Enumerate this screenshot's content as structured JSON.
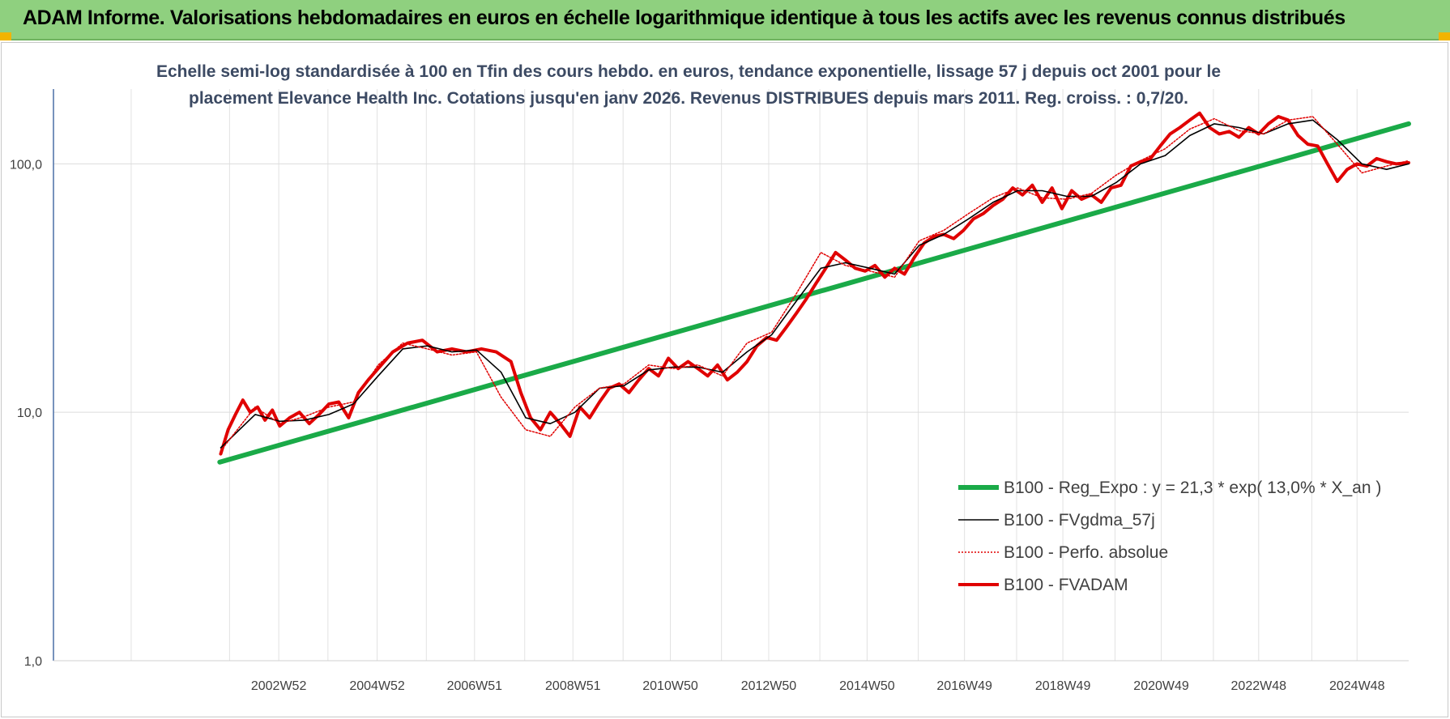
{
  "header": {
    "title": "ADAM Informe. Valorisations hebdomadaires en euros en échelle logarithmique identique à tous les actifs avec les revenus connus distribués"
  },
  "chart_data": {
    "type": "line",
    "title_lines": [
      "Echelle semi-log standardisée à 100 en Tfin des cours hebdo. en euros, tendance exponentielle, lissage 57 j depuis oct 2001 pour le",
      "placement Elevance Health Inc. Cotations jusqu'en janv 2026. Revenus DISTRIBUES depuis mars 2011. Reg. croiss. : 0,7/20."
    ],
    "y_scale": "log",
    "ylim": [
      1,
      200
    ],
    "y_ticks": [
      {
        "value": 1,
        "label": "1,0"
      },
      {
        "value": 10,
        "label": "10,0"
      },
      {
        "value": 100,
        "label": "100,0"
      }
    ],
    "xlim": [
      1998.4,
      2025.95
    ],
    "x_ticks": [
      {
        "value": 2002.98,
        "label": "2002W52"
      },
      {
        "value": 2004.98,
        "label": "2004W52"
      },
      {
        "value": 2006.96,
        "label": "2006W51"
      },
      {
        "value": 2008.96,
        "label": "2008W51"
      },
      {
        "value": 2010.94,
        "label": "2010W50"
      },
      {
        "value": 2012.94,
        "label": "2012W50"
      },
      {
        "value": 2014.94,
        "label": "2014W50"
      },
      {
        "value": 2016.92,
        "label": "2016W49"
      },
      {
        "value": 2018.92,
        "label": "2018W49"
      },
      {
        "value": 2020.92,
        "label": "2020W49"
      },
      {
        "value": 2022.9,
        "label": "2022W48"
      },
      {
        "value": 2024.9,
        "label": "2024W48"
      }
    ],
    "grid": true,
    "legend_position": "bottom-right",
    "series": [
      {
        "name": "B100 - Reg_Expo : y = 21,3 * exp( 13,0% *  X_an )",
        "color": "#1aaa48",
        "style": "thick",
        "x": [
          2001.78,
          2025.95
        ],
        "y": [
          6.3,
          145
        ]
      },
      {
        "name": "B100 - FVgdma_57j",
        "color": "#000000",
        "style": "thin",
        "x": [
          2001.8,
          2002.5,
          2003.0,
          2003.5,
          2004.0,
          2004.5,
          2005.0,
          2005.5,
          2006.0,
          2006.5,
          2007.0,
          2007.5,
          2008.0,
          2008.5,
          2009.0,
          2009.5,
          2010.0,
          2010.5,
          2011.0,
          2011.5,
          2012.0,
          2012.5,
          2013.0,
          2013.5,
          2014.0,
          2014.5,
          2015.0,
          2015.5,
          2016.0,
          2016.5,
          2017.0,
          2017.5,
          2018.0,
          2018.5,
          2019.0,
          2019.5,
          2020.0,
          2020.5,
          2021.0,
          2021.5,
          2022.0,
          2022.5,
          2023.0,
          2023.5,
          2024.0,
          2024.5,
          2025.0,
          2025.5,
          2025.95
        ],
        "y": [
          7.2,
          9.8,
          9.2,
          9.3,
          9.8,
          10.8,
          14,
          18,
          18.5,
          17.5,
          17.8,
          14.5,
          9.5,
          9,
          10,
          12.5,
          12.8,
          14.8,
          15.2,
          15.2,
          14.5,
          17.5,
          20.5,
          28,
          38,
          40,
          38,
          36,
          47,
          52,
          60,
          70,
          78,
          78,
          74,
          74,
          84,
          100,
          108,
          130,
          145,
          140,
          132,
          145,
          150,
          125,
          100,
          95,
          100
        ]
      },
      {
        "name": "B100 - Perfo. absolue",
        "color": "#e00000",
        "style": "dotted",
        "x": [
          2001.8,
          2002.5,
          2003.0,
          2003.5,
          2004.0,
          2004.5,
          2005.0,
          2005.5,
          2006.0,
          2006.5,
          2007.0,
          2007.5,
          2008.0,
          2008.5,
          2009.0,
          2009.5,
          2010.0,
          2010.5,
          2011.0,
          2011.5,
          2012.0,
          2012.5,
          2013.0,
          2013.5,
          2014.0,
          2014.5,
          2015.0,
          2015.5,
          2016.0,
          2016.5,
          2017.0,
          2017.5,
          2018.0,
          2018.5,
          2019.0,
          2019.5,
          2020.0,
          2020.5,
          2021.0,
          2021.5,
          2022.0,
          2022.5,
          2023.0,
          2023.5,
          2024.0,
          2024.5,
          2025.0,
          2025.5,
          2025.95
        ],
        "y": [
          7.0,
          10.5,
          9.0,
          9.6,
          10.5,
          11.0,
          15.5,
          19.0,
          18.0,
          17.0,
          17.5,
          11.5,
          8.5,
          8.0,
          10.5,
          12.5,
          13.0,
          15.5,
          15.0,
          15.5,
          14.0,
          19.0,
          21.0,
          30.0,
          44.0,
          39.0,
          37.0,
          35.0,
          49.0,
          54.0,
          63.0,
          73.0,
          80.0,
          73.0,
          72.0,
          76.0,
          90.0,
          103.0,
          115.0,
          138.0,
          152.0,
          136.0,
          132.0,
          150.0,
          155.0,
          120.0,
          92.0,
          98.0,
          103.0
        ]
      },
      {
        "name": "B100 - FVADAM",
        "color": "#e00000",
        "style": "thick",
        "x": [
          2001.8,
          2001.95,
          2002.1,
          2002.25,
          2002.4,
          2002.55,
          2002.7,
          2002.85,
          2003.0,
          2003.2,
          2003.4,
          2003.6,
          2003.8,
          2004.0,
          2004.2,
          2004.4,
          2004.6,
          2004.8,
          2005.0,
          2005.3,
          2005.6,
          2005.9,
          2006.2,
          2006.5,
          2006.8,
          2007.1,
          2007.4,
          2007.7,
          2007.9,
          2008.1,
          2008.3,
          2008.5,
          2008.7,
          2008.9,
          2009.1,
          2009.3,
          2009.5,
          2009.7,
          2009.9,
          2010.1,
          2010.3,
          2010.5,
          2010.7,
          2010.9,
          2011.1,
          2011.3,
          2011.5,
          2011.7,
          2011.9,
          2012.1,
          2012.3,
          2012.5,
          2012.7,
          2012.9,
          2013.1,
          2013.3,
          2013.5,
          2013.7,
          2013.9,
          2014.1,
          2014.3,
          2014.5,
          2014.7,
          2014.9,
          2015.1,
          2015.3,
          2015.5,
          2015.7,
          2015.9,
          2016.1,
          2016.3,
          2016.5,
          2016.7,
          2016.9,
          2017.1,
          2017.3,
          2017.5,
          2017.7,
          2017.9,
          2018.1,
          2018.3,
          2018.5,
          2018.7,
          2018.9,
          2019.1,
          2019.3,
          2019.5,
          2019.7,
          2019.9,
          2020.1,
          2020.3,
          2020.5,
          2020.7,
          2020.9,
          2021.1,
          2021.3,
          2021.5,
          2021.7,
          2021.9,
          2022.1,
          2022.3,
          2022.5,
          2022.7,
          2022.9,
          2023.1,
          2023.3,
          2023.5,
          2023.7,
          2023.9,
          2024.1,
          2024.3,
          2024.5,
          2024.7,
          2024.9,
          2025.1,
          2025.3,
          2025.5,
          2025.7,
          2025.95
        ],
        "y": [
          6.8,
          8.5,
          9.8,
          11.2,
          10.0,
          10.5,
          9.3,
          10.2,
          8.8,
          9.5,
          10.0,
          9.0,
          9.8,
          10.8,
          11.0,
          9.5,
          12.0,
          13.5,
          15.0,
          17.5,
          19.0,
          19.5,
          17.5,
          18.0,
          17.5,
          18.0,
          17.5,
          16.0,
          12.0,
          9.5,
          8.5,
          10.0,
          9.0,
          8.0,
          10.5,
          9.5,
          11.0,
          12.5,
          13.0,
          12.0,
          13.5,
          15.0,
          14.0,
          16.5,
          15.0,
          16.0,
          15.0,
          14.0,
          15.5,
          13.5,
          14.5,
          16.0,
          18.5,
          20.0,
          19.5,
          22.0,
          25.0,
          28.5,
          33.0,
          38.0,
          44.0,
          41.0,
          38.0,
          37.0,
          39.0,
          35.0,
          38.0,
          36.0,
          42.0,
          48.0,
          51.0,
          52.0,
          50.0,
          54.0,
          60.0,
          63.0,
          68.0,
          72.0,
          80.0,
          75.0,
          82.0,
          70.0,
          80.0,
          66.0,
          78.0,
          72.0,
          75.0,
          70.0,
          80.0,
          82.0,
          98.0,
          102.0,
          105.0,
          118.0,
          132.0,
          140.0,
          150.0,
          160.0,
          140.0,
          132.0,
          135.0,
          128.0,
          140.0,
          132.0,
          145.0,
          155.0,
          150.0,
          130.0,
          120.0,
          118.0,
          100.0,
          85.0,
          95.0,
          100.0,
          98.0,
          105.0,
          102.0,
          100.0,
          101.0
        ]
      }
    ]
  }
}
